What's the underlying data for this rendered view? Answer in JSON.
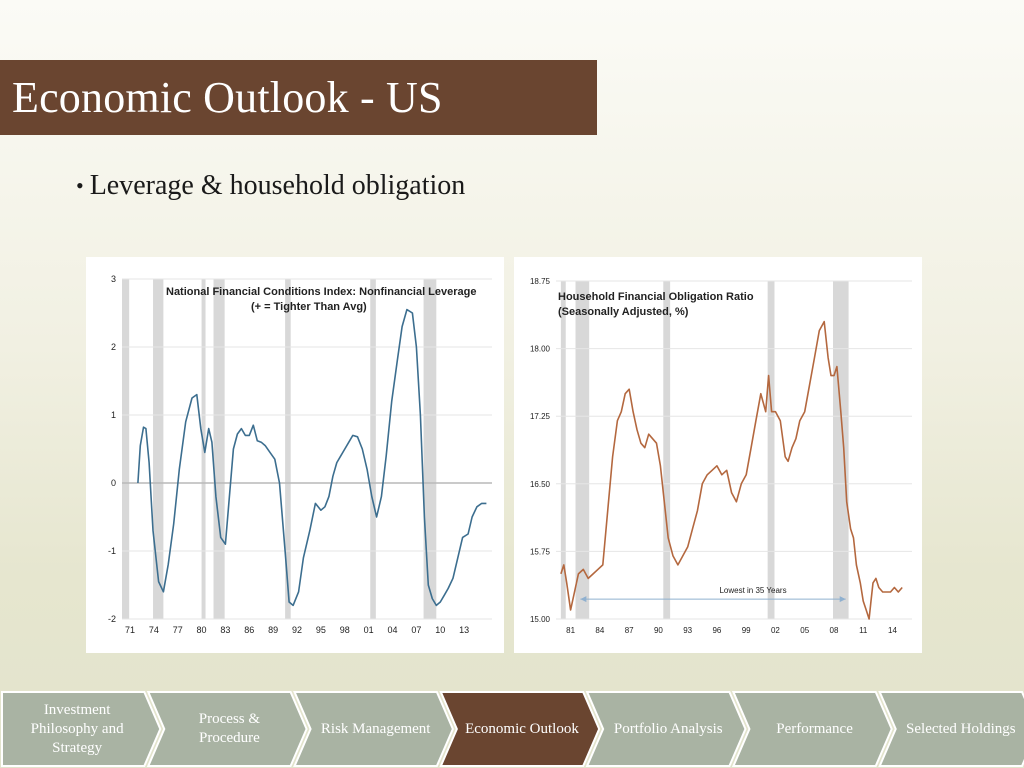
{
  "slide": {
    "title": "Economic Outlook - US",
    "bullet": "Leverage & household obligation"
  },
  "nav": {
    "items": [
      {
        "label": "Investment Philosophy and Strategy",
        "active": false
      },
      {
        "label": "Process & Procedure",
        "active": false
      },
      {
        "label": "Risk Management",
        "active": false
      },
      {
        "label": "Economic Outlook",
        "active": true
      },
      {
        "label": "Portfolio Analysis",
        "active": false
      },
      {
        "label": "Performance",
        "active": false
      },
      {
        "label": "Selected Holdings",
        "active": false
      }
    ],
    "active_color": "#6a4530",
    "inactive_color": "#a9b3a3"
  },
  "chart_data": [
    {
      "type": "line",
      "title": "National Financial Conditions Index: Nonfinancial Leverage",
      "subtitle": "(+ = Tighter Than Avg)",
      "xlabel": "",
      "ylabel": "",
      "ylim": [
        -2,
        3
      ],
      "xlim": [
        1970,
        2016.5
      ],
      "x_tick_labels": [
        "71",
        "74",
        "77",
        "80",
        "83",
        "86",
        "89",
        "92",
        "95",
        "98",
        "01",
        "04",
        "07",
        "10",
        "13"
      ],
      "x_tick_values": [
        1971,
        1974,
        1977,
        1980,
        1983,
        1986,
        1989,
        1992,
        1995,
        1998,
        2001,
        2004,
        2007,
        2010,
        2013
      ],
      "y_ticks": [
        3,
        2,
        1,
        0,
        -1,
        -2
      ],
      "y_tick_labels": [
        "3",
        "2",
        "1",
        "0",
        "-1",
        "-2"
      ],
      "zero_line": true,
      "grid": true,
      "line_color": "#3c6e8f",
      "recessions": [
        [
          1970.0,
          1970.9
        ],
        [
          1973.9,
          1975.2
        ],
        [
          1980.0,
          1980.5
        ],
        [
          1981.5,
          1982.9
        ],
        [
          1990.5,
          1991.2
        ],
        [
          2001.2,
          2001.9
        ],
        [
          2007.9,
          2009.5
        ]
      ],
      "series": [
        {
          "x": [
            1972.0,
            1972.3,
            1972.7,
            1973.0,
            1973.4,
            1973.9,
            1974.6,
            1975.2,
            1975.8,
            1976.5,
            1977.2,
            1978.0,
            1978.8,
            1979.4,
            1979.9,
            1980.4,
            1980.9,
            1981.3,
            1981.8,
            1982.4,
            1983.0,
            1983.5,
            1984.0,
            1984.5,
            1985.0,
            1985.5,
            1986.0,
            1986.5,
            1987.0,
            1987.5,
            1988.0,
            1988.6,
            1989.2,
            1989.8,
            1990.5,
            1991.0,
            1991.5,
            1992.2,
            1992.8,
            1993.6,
            1994.3,
            1995.0,
            1995.5,
            1996.0,
            1996.5,
            1997.0,
            1997.5,
            1998.0,
            1998.5,
            1999.0,
            1999.6,
            2000.2,
            2000.8,
            2001.4,
            2002.0,
            2002.6,
            2003.2,
            2003.9,
            2004.6,
            2005.2,
            2005.8,
            2006.5,
            2007.0,
            2007.5,
            2008.0,
            2008.5,
            2009.0,
            2009.5,
            2010.0,
            2010.5,
            2011.0,
            2011.6,
            2012.2,
            2012.8,
            2013.5,
            2014.0,
            2014.6,
            2015.2,
            2015.8
          ],
          "y": [
            0.0,
            0.55,
            0.82,
            0.8,
            0.3,
            -0.7,
            -1.45,
            -1.6,
            -1.2,
            -0.6,
            0.2,
            0.9,
            1.25,
            1.3,
            0.8,
            0.45,
            0.8,
            0.6,
            -0.2,
            -0.8,
            -0.9,
            -0.2,
            0.5,
            0.72,
            0.8,
            0.7,
            0.7,
            0.85,
            0.62,
            0.6,
            0.55,
            0.45,
            0.35,
            0.0,
            -1.0,
            -1.75,
            -1.8,
            -1.6,
            -1.1,
            -0.7,
            -0.3,
            -0.4,
            -0.35,
            -0.2,
            0.1,
            0.3,
            0.4,
            0.5,
            0.6,
            0.7,
            0.68,
            0.5,
            0.2,
            -0.2,
            -0.5,
            -0.2,
            0.4,
            1.2,
            1.8,
            2.3,
            2.55,
            2.5,
            2.0,
            1.0,
            -0.5,
            -1.5,
            -1.7,
            -1.8,
            -1.75,
            -1.65,
            -1.55,
            -1.4,
            -1.1,
            -0.8,
            -0.75,
            -0.5,
            -0.35,
            -0.3,
            -0.3
          ]
        }
      ]
    },
    {
      "type": "line",
      "title": "Household Financial Obligation Ratio",
      "subtitle": "(Seasonally Adjusted, %)",
      "xlabel": "",
      "ylabel": "",
      "ylim": [
        15.0,
        18.75
      ],
      "xlim": [
        1979.5,
        2016
      ],
      "x_tick_labels": [
        "81",
        "84",
        "87",
        "90",
        "93",
        "96",
        "99",
        "02",
        "05",
        "08",
        "11",
        "14"
      ],
      "x_tick_values": [
        1981,
        1984,
        1987,
        1990,
        1993,
        1996,
        1999,
        2002,
        2005,
        2008,
        2011,
        2014
      ],
      "y_ticks": [
        18.75,
        18.0,
        17.25,
        16.5,
        15.75,
        15.0
      ],
      "y_tick_labels": [
        "18.75",
        "18.00",
        "17.25",
        "16.50",
        "15.75",
        "15.00"
      ],
      "grid": true,
      "line_color": "#b4683f",
      "recessions": [
        [
          1980.0,
          1980.5
        ],
        [
          1981.5,
          1982.9
        ],
        [
          1990.5,
          1991.2
        ],
        [
          2001.2,
          2001.9
        ],
        [
          2007.9,
          2009.5
        ]
      ],
      "annotation": {
        "text": "Lowest in 35 Years",
        "from_x": 1982.0,
        "to_x": 2009.2,
        "y": 15.22
      },
      "series": [
        {
          "x": [
            1980.0,
            1980.3,
            1980.6,
            1981.0,
            1981.4,
            1981.8,
            1982.3,
            1982.8,
            1983.3,
            1983.8,
            1984.3,
            1984.8,
            1985.3,
            1985.8,
            1986.2,
            1986.6,
            1987.0,
            1987.4,
            1987.8,
            1988.2,
            1988.6,
            1989.0,
            1989.4,
            1989.8,
            1990.2,
            1990.6,
            1991.0,
            1991.5,
            1992.0,
            1992.5,
            1993.0,
            1993.5,
            1994.0,
            1994.5,
            1995.0,
            1995.5,
            1996.0,
            1996.5,
            1997.0,
            1997.5,
            1998.0,
            1998.5,
            1999.0,
            1999.5,
            2000.0,
            2000.5,
            2001.0,
            2001.3,
            2001.6,
            2002.0,
            2002.5,
            2003.0,
            2003.3,
            2003.7,
            2004.1,
            2004.5,
            2005.0,
            2005.5,
            2006.0,
            2006.5,
            2007.0,
            2007.4,
            2007.7,
            2008.0,
            2008.3,
            2008.7,
            2009.0,
            2009.3,
            2009.7,
            2010.0,
            2010.3,
            2010.7,
            2011.0,
            2011.3,
            2011.6,
            2011.8,
            2012.0,
            2012.3,
            2012.6,
            2013.0,
            2013.4,
            2013.8,
            2014.2,
            2014.6,
            2015.0
          ],
          "y": [
            15.5,
            15.6,
            15.4,
            15.1,
            15.3,
            15.5,
            15.55,
            15.45,
            15.5,
            15.55,
            15.6,
            16.2,
            16.8,
            17.2,
            17.3,
            17.5,
            17.55,
            17.3,
            17.1,
            16.95,
            16.9,
            17.05,
            17.0,
            16.95,
            16.7,
            16.3,
            15.9,
            15.7,
            15.6,
            15.7,
            15.8,
            16.0,
            16.2,
            16.5,
            16.6,
            16.65,
            16.7,
            16.6,
            16.65,
            16.4,
            16.3,
            16.5,
            16.6,
            16.9,
            17.2,
            17.5,
            17.3,
            17.7,
            17.3,
            17.3,
            17.2,
            16.8,
            16.75,
            16.9,
            17.0,
            17.2,
            17.3,
            17.6,
            17.9,
            18.2,
            18.3,
            17.9,
            17.7,
            17.7,
            17.8,
            17.3,
            16.9,
            16.3,
            16.0,
            15.9,
            15.6,
            15.4,
            15.2,
            15.1,
            15.0,
            15.2,
            15.4,
            15.45,
            15.35,
            15.3,
            15.3,
            15.3,
            15.35,
            15.3,
            15.35
          ]
        }
      ]
    }
  ]
}
